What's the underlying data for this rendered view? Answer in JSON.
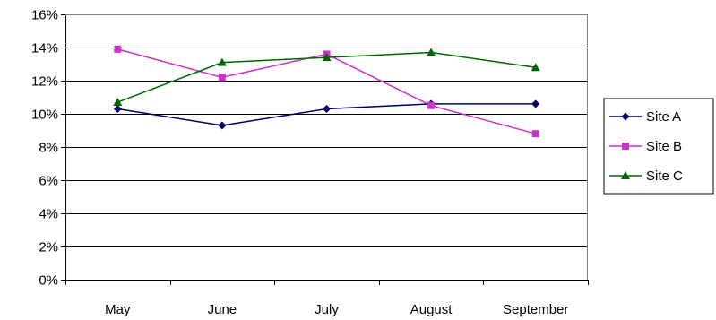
{
  "chart_data": {
    "type": "line",
    "categories": [
      "May",
      "June",
      "July",
      "August",
      "September"
    ],
    "y_ticks": [
      "0%",
      "2%",
      "4%",
      "6%",
      "8%",
      "10%",
      "12%",
      "14%",
      "16%"
    ],
    "ylim": [
      0,
      16
    ],
    "y_unit": "%",
    "grid": true,
    "legend_position": "right",
    "series": [
      {
        "name": "Site A",
        "values": [
          10.3,
          9.3,
          10.3,
          10.6,
          10.6
        ],
        "color": "#000066",
        "marker": "diamond"
      },
      {
        "name": "Site B",
        "values": [
          13.9,
          12.2,
          13.6,
          10.5,
          8.8
        ],
        "color": "#cc33cc",
        "marker": "square"
      },
      {
        "name": "Site C",
        "values": [
          10.7,
          13.1,
          13.4,
          13.7,
          12.8
        ],
        "color": "#006600",
        "marker": "triangle"
      }
    ]
  }
}
